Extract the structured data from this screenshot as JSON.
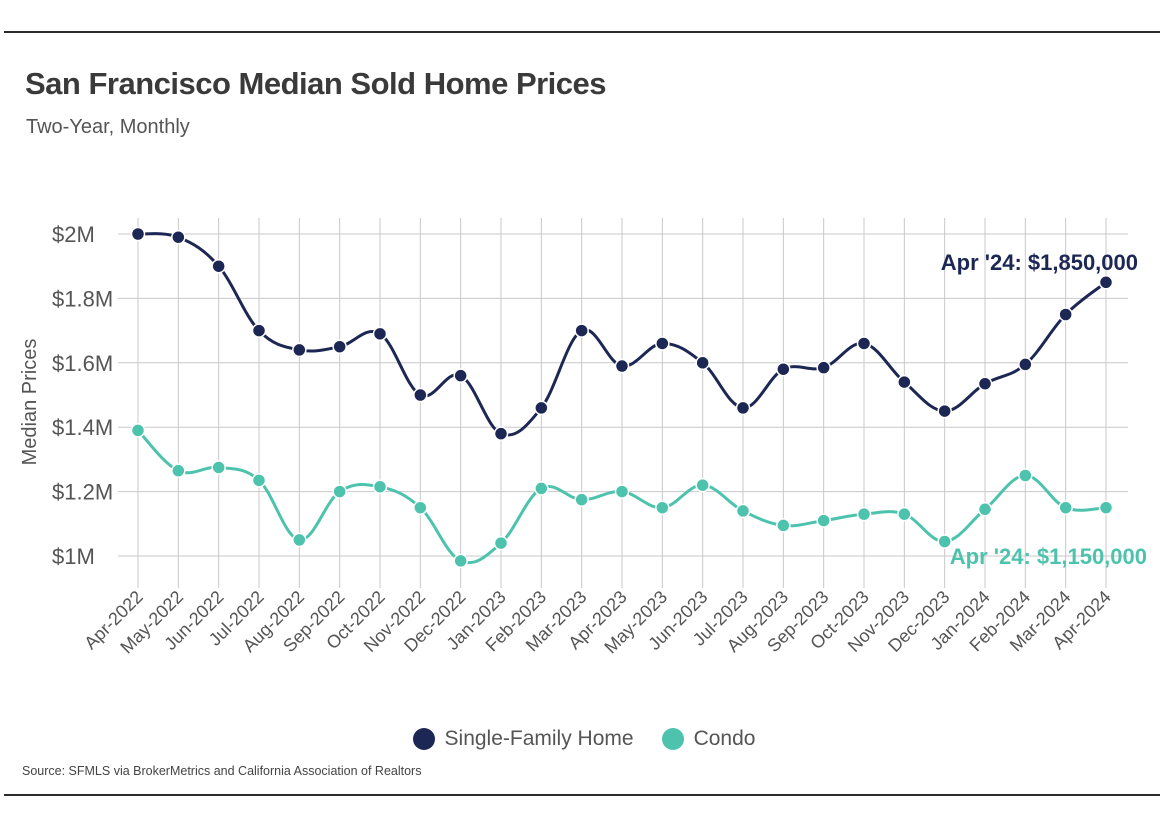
{
  "header": {
    "title": "San Francisco Median Sold Home Prices",
    "subtitle": "Two-Year, Monthly"
  },
  "footer": {
    "source": "Source:  SFMLS via BrokerMetrics and California Association of Realtors"
  },
  "colors": {
    "single_family": "#1c2753",
    "condo": "#4dc3ad",
    "grid": "#c8c8c8",
    "text": "#555555"
  },
  "chart_data": {
    "type": "line",
    "title": "San Francisco Median Sold Home Prices",
    "subtitle": "Two-Year, Monthly",
    "xlabel": "",
    "ylabel": "Median Prices",
    "ylim": [
      1000000,
      2000000
    ],
    "yticks": [
      1000000,
      1200000,
      1400000,
      1600000,
      1800000,
      2000000
    ],
    "ytick_labels": [
      "$1M",
      "$1.2M",
      "$1.4M",
      "$1.6M",
      "$1.8M",
      "$2M"
    ],
    "grid": true,
    "legend_position": "bottom",
    "categories": [
      "Apr-2022",
      "May-2022",
      "Jun-2022",
      "Jul-2022",
      "Aug-2022",
      "Sep-2022",
      "Oct-2022",
      "Nov-2022",
      "Dec-2022",
      "Jan-2023",
      "Feb-2023",
      "Mar-2023",
      "Apr-2023",
      "May-2023",
      "Jun-2023",
      "Jul-2023",
      "Aug-2023",
      "Sep-2023",
      "Oct-2023",
      "Nov-2023",
      "Dec-2023",
      "Jan-2024",
      "Feb-2024",
      "Mar-2024",
      "Apr-2024"
    ],
    "series": [
      {
        "name": "Single-Family Home",
        "color": "#1c2753",
        "values": [
          2000000,
          1990000,
          1900000,
          1700000,
          1640000,
          1650000,
          1690000,
          1500000,
          1560000,
          1380000,
          1460000,
          1700000,
          1590000,
          1660000,
          1600000,
          1460000,
          1580000,
          1585000,
          1660000,
          1540000,
          1450000,
          1535000,
          1595000,
          1750000,
          1850000
        ],
        "annotation": "Apr '24: $1,850,000"
      },
      {
        "name": "Condo",
        "color": "#4dc3ad",
        "values": [
          1390000,
          1265000,
          1275000,
          1235000,
          1050000,
          1200000,
          1215000,
          1150000,
          985000,
          1040000,
          1210000,
          1175000,
          1200000,
          1150000,
          1220000,
          1140000,
          1095000,
          1110000,
          1130000,
          1130000,
          1045000,
          1145000,
          1250000,
          1150000,
          1150000
        ],
        "annotation": "Apr '24: $1,150,000"
      }
    ]
  }
}
